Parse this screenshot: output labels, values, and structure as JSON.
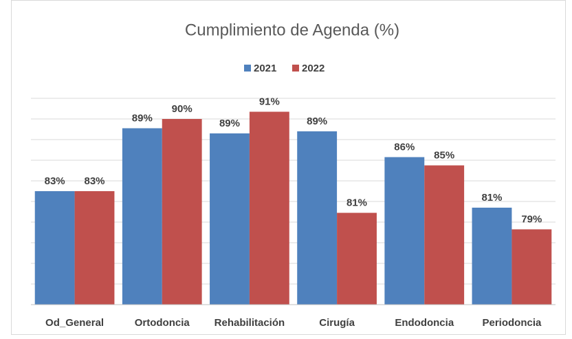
{
  "chart_data": {
    "type": "bar",
    "title": "Cumplimiento de Agenda (%)",
    "categories": [
      "Od_General",
      "Ortodoncia",
      "Rehabilitación",
      "Cirugía",
      "Endodoncia",
      "Periodoncia"
    ],
    "series": [
      {
        "name": "2021",
        "color": "#4f81bd",
        "values": [
          83.0,
          89.1,
          88.6,
          88.8,
          86.3,
          81.4
        ],
        "value_labels": [
          "83%",
          "89%",
          "89%",
          "89%",
          "86%",
          "81%"
        ]
      },
      {
        "name": "2022",
        "color": "#c0504d",
        "values": [
          83.0,
          90.0,
          90.7,
          80.9,
          85.5,
          79.3
        ],
        "value_labels": [
          "83%",
          "90%",
          "91%",
          "81%",
          "85%",
          "79%"
        ]
      }
    ],
    "ylim": [
      72,
      92
    ],
    "yticks": [
      72,
      74,
      76,
      78,
      80,
      82,
      84,
      86,
      88,
      90,
      92
    ],
    "grid": true,
    "legend": "top"
  }
}
